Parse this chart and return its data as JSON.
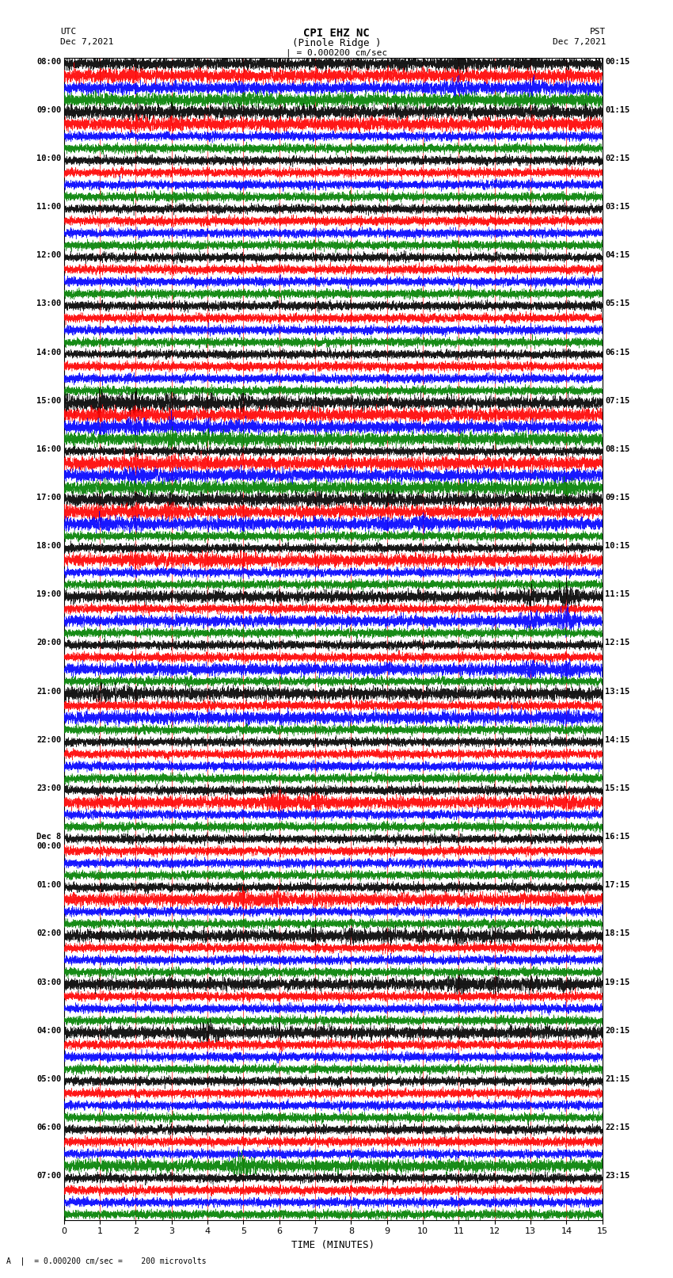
{
  "title_line1": "CPI EHZ NC",
  "title_line2": "(Pinole Ridge )",
  "scale_label": "| = 0.000200 cm/sec",
  "bottom_label": "A  |  = 0.000200 cm/sec =    200 microvolts",
  "xlabel": "TIME (MINUTES)",
  "utc_label": "UTC",
  "utc_date": "Dec 7,2021",
  "pst_label": "PST",
  "pst_date": "Dec 7,2021",
  "left_times": [
    "08:00",
    "09:00",
    "10:00",
    "11:00",
    "12:00",
    "13:00",
    "14:00",
    "15:00",
    "16:00",
    "17:00",
    "18:00",
    "19:00",
    "20:00",
    "21:00",
    "22:00",
    "23:00",
    "Dec 8\n00:00",
    "01:00",
    "02:00",
    "03:00",
    "04:00",
    "05:00",
    "06:00",
    "07:00"
  ],
  "right_times": [
    "00:15",
    "01:15",
    "02:15",
    "03:15",
    "04:15",
    "05:15",
    "06:15",
    "07:15",
    "08:15",
    "09:15",
    "10:15",
    "11:15",
    "12:15",
    "13:15",
    "14:15",
    "15:15",
    "16:15",
    "17:15",
    "18:15",
    "19:15",
    "20:15",
    "21:15",
    "22:15",
    "23:15"
  ],
  "n_rows": 24,
  "traces_per_row": 4,
  "colors": [
    "black",
    "red",
    "blue",
    "green"
  ],
  "xlim": [
    0,
    15
  ],
  "minutes_per_row": 15,
  "fig_width": 8.5,
  "fig_height": 16.13,
  "bg_color": "white",
  "seed": 42
}
